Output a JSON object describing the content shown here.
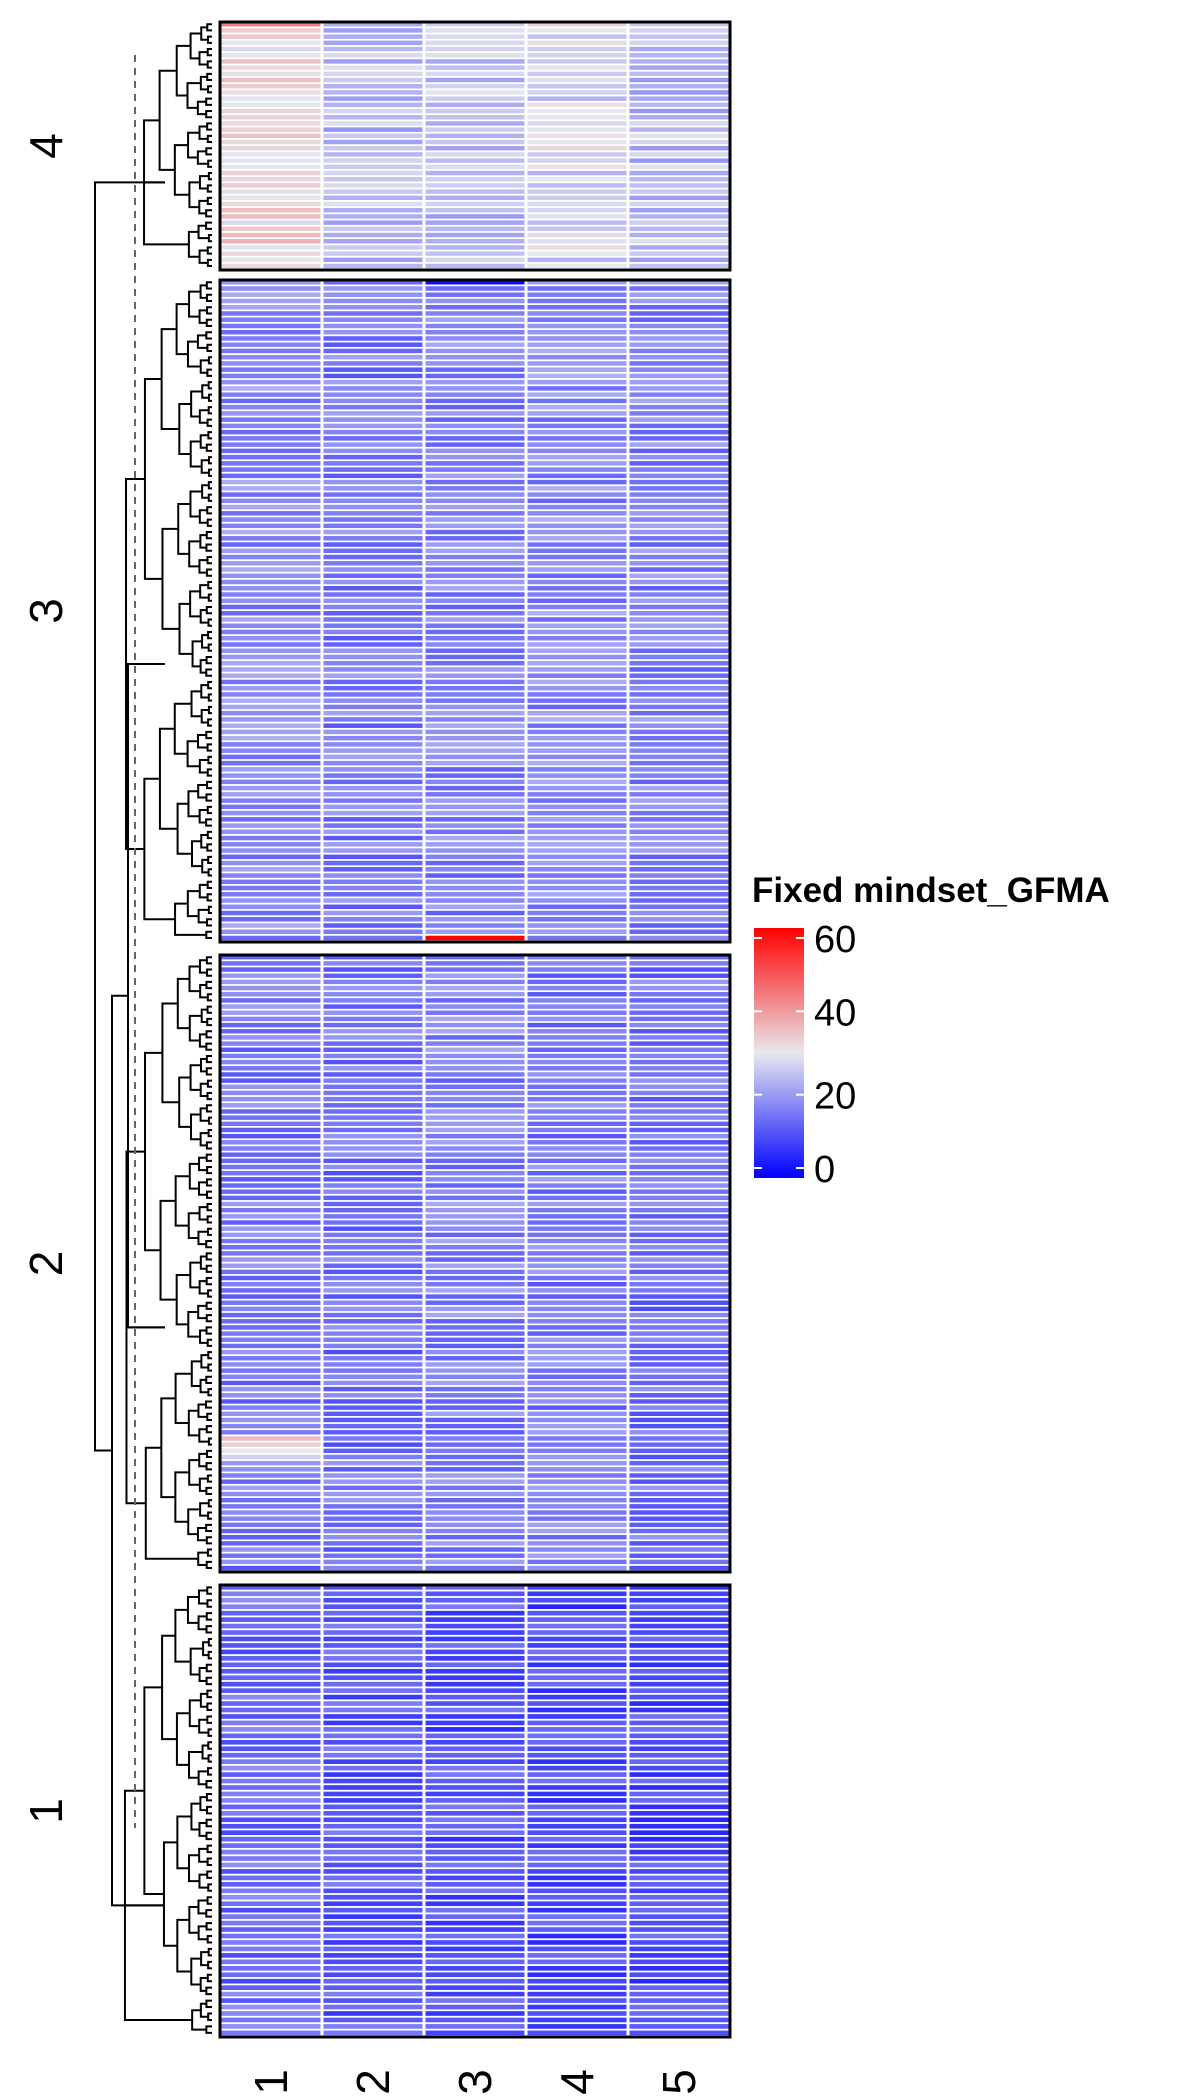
{
  "chart_data": {
    "type": "heatmap",
    "title": "",
    "xlabel": "",
    "ylabel": "",
    "columns": [
      "1",
      "2",
      "3",
      "4",
      "5"
    ],
    "row_split_labels": [
      "4",
      "3",
      "2",
      "1"
    ],
    "row_counts": [
      40,
      106,
      100,
      70
    ],
    "legend": {
      "title": "Fixed mindset_GFMA",
      "ticks": [
        "60",
        "40",
        "20",
        "0"
      ],
      "tick_values": [
        60,
        40,
        20,
        0
      ],
      "range": [
        0,
        60
      ],
      "placement": "right",
      "colors": {
        "low": "#0000ff",
        "mid": "#e8e8ee",
        "high": "#ff0000"
      },
      "midpoint": 30
    },
    "slice_mean_values": [
      [
        32,
        24,
        25,
        28,
        24
      ],
      [
        18,
        16,
        17,
        18,
        17
      ],
      [
        16,
        15,
        17,
        16,
        15
      ],
      [
        14,
        12,
        11,
        10,
        10
      ]
    ],
    "highlights": [
      {
        "slice": "3",
        "column": "3",
        "row": "first",
        "value": 2
      },
      {
        "slice": "3",
        "column": "3",
        "row": "last",
        "value": 62
      },
      {
        "slice": "4",
        "column": "1",
        "row": "first",
        "value": 44
      },
      {
        "slice": "2",
        "column": "1",
        "row": "near-last-group",
        "value": 36
      }
    ],
    "dendrogram": {
      "placement": "left",
      "cut_line": "dashed"
    }
  }
}
